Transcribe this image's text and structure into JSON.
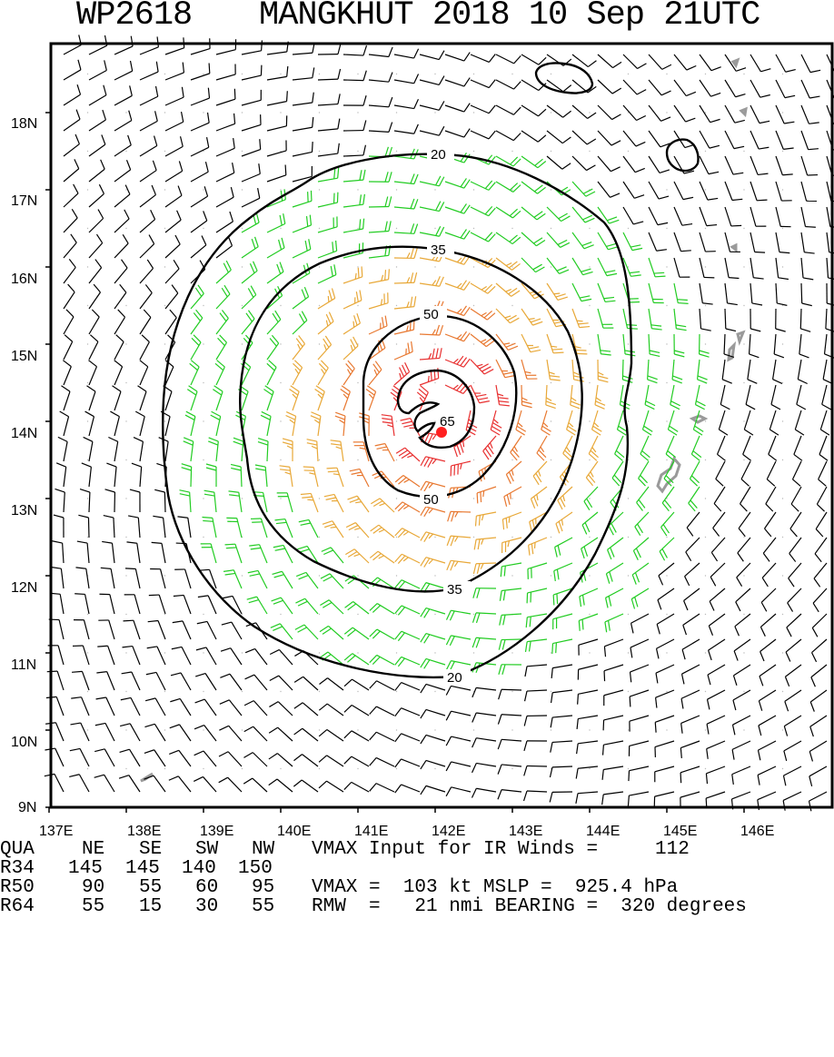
{
  "title": {
    "storm_id": "WP2618",
    "storm_info": "MANGKHUT 2018 10 Sep 21UTC"
  },
  "axes": {
    "lat_labels": [
      "9N",
      "10N",
      "11N",
      "12N",
      "13N",
      "14N",
      "15N",
      "16N",
      "17N",
      "18N"
    ],
    "lon_labels": [
      "137E",
      "138E",
      "139E",
      "140E",
      "141E",
      "142E",
      "143E",
      "144E",
      "145E",
      "146E"
    ]
  },
  "contours": [
    {
      "label": "20",
      "value": 20
    },
    {
      "label": "35",
      "value": 35
    },
    {
      "label": "50",
      "value": 50
    },
    {
      "label": "65",
      "value": 65
    }
  ],
  "colors": {
    "frame": "#000000",
    "barb_weak": "#000000",
    "barb_34": "#22cc22",
    "barb_50": "#e8a838",
    "barb_64": "#e87830",
    "barb_core": "#e83030",
    "center": "#ff2020",
    "land": "#9a9a9a"
  },
  "info": {
    "header": {
      "qua": "QUA",
      "ne": "NE",
      "se": "SE",
      "sw": "SW",
      "nw": "NW",
      "text": "VMAX Input for IR Winds =",
      "value": "112"
    },
    "r34": {
      "label": "R34",
      "ne": "145",
      "se": "145",
      "sw": "140",
      "nw": "150"
    },
    "r50": {
      "label": "R50",
      "ne": "90",
      "se": "55",
      "sw": "60",
      "nw": "95",
      "text": "VMAX =  103 kt MSLP =  925.4 hPa"
    },
    "r64": {
      "label": "R64",
      "ne": "55",
      "se": "15",
      "sw": "30",
      "nw": "55",
      "text": "RMW  =   21 nmi BEARING =  320 degrees"
    }
  }
}
